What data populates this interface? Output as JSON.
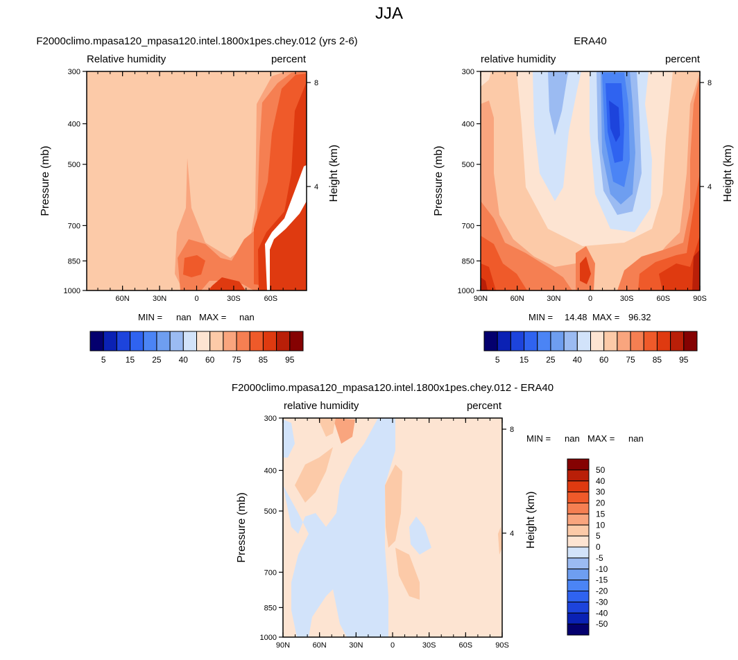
{
  "figure_title": "JJA",
  "chart_data": [
    {
      "type": "heatmap",
      "title": "F2000climo.mpasa120_mpasa120.intel.1800x1pes.chey.012 (yrs 2-6)",
      "left_label": "Relative humidity",
      "right_label": "percent",
      "ylabel": "Pressure (mb)",
      "ylabel_right": "Height (km)",
      "y_ticks": [
        "300",
        "400",
        "500",
        "700",
        "850",
        "1000"
      ],
      "y_tick_values": [
        300,
        400,
        500,
        700,
        850,
        1000
      ],
      "height_ticks": [
        "8",
        "4"
      ],
      "height_tick_values": [
        8,
        4
      ],
      "x_ticks": [
        "60N",
        "30N",
        "0",
        "30S",
        "60S"
      ],
      "x_tick_values": [
        60,
        30,
        0,
        -30,
        -60
      ],
      "xlim": [
        89,
        -89
      ],
      "ylim": [
        300,
        1000
      ],
      "min_label": "MIN =",
      "min_value": "nan",
      "max_label": "MAX =",
      "max_value": "nan",
      "colorbar_labels": [
        "5",
        "15",
        "25",
        "40",
        "60",
        "75",
        "85",
        "95"
      ],
      "colorbar_levels": [
        5,
        10,
        15,
        20,
        25,
        30,
        40,
        50,
        60,
        70,
        75,
        80,
        85,
        90,
        95
      ],
      "colorbar_colors": [
        "#04006e",
        "#0a21b4",
        "#1d44dc",
        "#2f63f0",
        "#4b84f5",
        "#6e9ef0",
        "#9bbbf2",
        "#d2e3fa",
        "#fde4d2",
        "#fccaa8",
        "#f9a57e",
        "#f57f52",
        "#ef5a2a",
        "#df3a10",
        "#b91f08",
        "#850202"
      ]
    },
    {
      "type": "heatmap",
      "title": "ERA40",
      "left_label": "relative humidity",
      "right_label": "percent",
      "ylabel": "Pressure (mb)",
      "ylabel_right": "Height (km)",
      "y_ticks": [
        "300",
        "400",
        "500",
        "700",
        "850",
        "1000"
      ],
      "y_tick_values": [
        300,
        400,
        500,
        700,
        850,
        1000
      ],
      "height_ticks": [
        "8",
        "4"
      ],
      "height_tick_values": [
        8,
        4
      ],
      "x_ticks": [
        "90N",
        "60N",
        "30N",
        "0",
        "30S",
        "60S",
        "90S"
      ],
      "x_tick_values": [
        90,
        60,
        30,
        0,
        -30,
        -60,
        -90
      ],
      "xlim": [
        90,
        -90
      ],
      "ylim": [
        300,
        1000
      ],
      "min_label": "MIN =",
      "min_value": "14.48",
      "max_label": "MAX =",
      "max_value": "96.32",
      "colorbar_labels": [
        "5",
        "15",
        "25",
        "40",
        "60",
        "75",
        "85",
        "95"
      ],
      "colorbar_levels": [
        5,
        10,
        15,
        20,
        25,
        30,
        40,
        50,
        60,
        70,
        75,
        80,
        85,
        90,
        95
      ],
      "colorbar_colors": [
        "#04006e",
        "#0a21b4",
        "#1d44dc",
        "#2f63f0",
        "#4b84f5",
        "#6e9ef0",
        "#9bbbf2",
        "#d2e3fa",
        "#fde4d2",
        "#fccaa8",
        "#f9a57e",
        "#f57f52",
        "#ef5a2a",
        "#df3a10",
        "#b91f08",
        "#850202"
      ]
    },
    {
      "type": "heatmap",
      "title": "F2000climo.mpasa120_mpasa120.intel.1800x1pes.chey.012 - ERA40",
      "left_label": "relative humidity",
      "right_label": "percent",
      "ylabel": "Pressure (mb)",
      "ylabel_right": "Height (km)",
      "y_ticks": [
        "300",
        "400",
        "500",
        "700",
        "850",
        "1000"
      ],
      "y_tick_values": [
        300,
        400,
        500,
        700,
        850,
        1000
      ],
      "height_ticks": [
        "8",
        "4"
      ],
      "height_tick_values": [
        8,
        4
      ],
      "x_ticks": [
        "90N",
        "60N",
        "30N",
        "0",
        "30S",
        "60S",
        "90S"
      ],
      "x_tick_values": [
        90,
        60,
        30,
        0,
        -30,
        -60,
        -90
      ],
      "xlim": [
        90,
        -90
      ],
      "ylim": [
        300,
        1000
      ],
      "min_label": "MIN =",
      "min_value": "nan",
      "max_label": "MAX =",
      "max_value": "nan",
      "colorbar_labels": [
        "50",
        "40",
        "30",
        "20",
        "15",
        "10",
        "5",
        "0",
        "-5",
        "-10",
        "-15",
        "-20",
        "-30",
        "-40",
        "-50"
      ],
      "colorbar_colors": [
        "#850202",
        "#b91f08",
        "#df3a10",
        "#ef5a2a",
        "#f57f52",
        "#f9a57e",
        "#fccaa8",
        "#fde4d2",
        "#d2e3fa",
        "#9bbbf2",
        "#6e9ef0",
        "#4b84f5",
        "#2f63f0",
        "#1d44dc",
        "#0a21b4",
        "#04006e"
      ]
    }
  ]
}
